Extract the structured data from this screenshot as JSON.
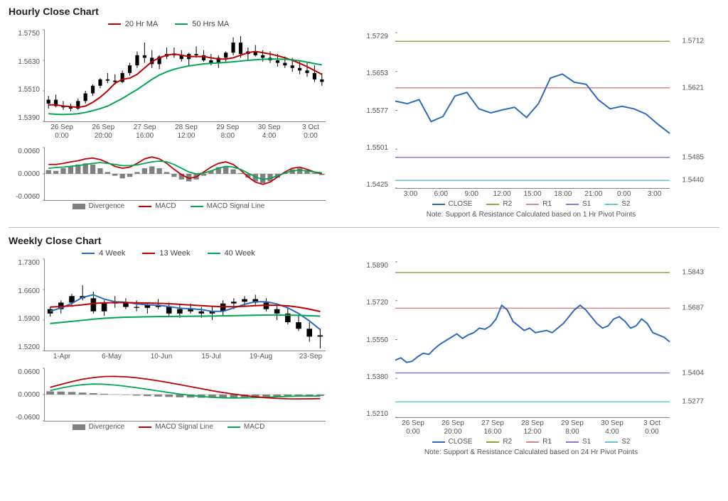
{
  "hourly": {
    "title": "Hourly Close Chart",
    "main": {
      "legend": [
        {
          "label": "20 Hr MA",
          "color": "#c00000"
        },
        {
          "label": "50 Hrs MA",
          "color": "#00a651"
        }
      ],
      "y_ticks": [
        "1.5750",
        "1.5630",
        "1.5510",
        "1.5390"
      ],
      "ylim": [
        1.539,
        1.575
      ],
      "x_labels": [
        "26 Sep\n0:00",
        "26 Sep\n20:00",
        "27 Sep\n16:00",
        "28 Sep\n12:00",
        "29 Sep\n8:00",
        "30 Sep\n4:00",
        "3 Oct\n0:00"
      ],
      "candle_color": "#000000",
      "ma20_color": "#c00000",
      "ma50_color": "#00a651",
      "candles": [
        [
          1.546,
          1.549,
          1.544,
          1.5475
        ],
        [
          1.5475,
          1.5495,
          1.5445,
          1.545
        ],
        [
          1.545,
          1.547,
          1.5435,
          1.5445
        ],
        [
          1.5445,
          1.546,
          1.543,
          1.544
        ],
        [
          1.544,
          1.548,
          1.5435,
          1.547
        ],
        [
          1.547,
          1.551,
          1.546,
          1.55
        ],
        [
          1.55,
          1.5535,
          1.549,
          1.553
        ],
        [
          1.553,
          1.556,
          1.552,
          1.5555
        ],
        [
          1.5555,
          1.558,
          1.554,
          1.555
        ],
        [
          1.555,
          1.5575,
          1.5535,
          1.5545
        ],
        [
          1.5545,
          1.559,
          1.554,
          1.558
        ],
        [
          1.558,
          1.562,
          1.557,
          1.561
        ],
        [
          1.561,
          1.5665,
          1.56,
          1.565
        ],
        [
          1.565,
          1.57,
          1.562,
          1.564
        ],
        [
          1.564,
          1.567,
          1.56,
          1.5615
        ],
        [
          1.5615,
          1.565,
          1.5595,
          1.5645
        ],
        [
          1.5645,
          1.568,
          1.5635,
          1.5655
        ],
        [
          1.5655,
          1.568,
          1.564,
          1.565
        ],
        [
          1.565,
          1.567,
          1.5625,
          1.5635
        ],
        [
          1.5635,
          1.566,
          1.561,
          1.5655
        ],
        [
          1.5655,
          1.5685,
          1.564,
          1.565
        ],
        [
          1.565,
          1.567,
          1.5625,
          1.563
        ],
        [
          1.563,
          1.5655,
          1.561,
          1.562
        ],
        [
          1.562,
          1.565,
          1.56,
          1.564
        ],
        [
          1.564,
          1.5665,
          1.5625,
          1.566
        ],
        [
          1.566,
          1.572,
          1.565,
          1.57
        ],
        [
          1.57,
          1.5725,
          1.564,
          1.5655
        ],
        [
          1.5655,
          1.568,
          1.563,
          1.5665
        ],
        [
          1.5665,
          1.569,
          1.5645,
          1.565
        ],
        [
          1.565,
          1.567,
          1.5625,
          1.564
        ],
        [
          1.564,
          1.5665,
          1.562,
          1.563
        ],
        [
          1.563,
          1.5655,
          1.5605,
          1.562
        ],
        [
          1.562,
          1.5645,
          1.56,
          1.561
        ],
        [
          1.561,
          1.564,
          1.5585,
          1.56
        ],
        [
          1.56,
          1.5625,
          1.5575,
          1.559
        ],
        [
          1.559,
          1.562,
          1.5565,
          1.558
        ],
        [
          1.558,
          1.561,
          1.5545,
          1.5555
        ],
        [
          1.5555,
          1.558,
          1.553,
          1.5545
        ]
      ],
      "ma20": [
        1.5455,
        1.5455,
        1.545,
        1.5448,
        1.5445,
        1.545,
        1.5465,
        1.5485,
        1.551,
        1.554,
        1.5555,
        1.556,
        1.5575,
        1.56,
        1.5625,
        1.564,
        1.565,
        1.5655,
        1.565,
        1.5645,
        1.5645,
        1.5645,
        1.564,
        1.5635,
        1.5635,
        1.564,
        1.565,
        1.566,
        1.5665,
        1.566,
        1.5655,
        1.5648,
        1.564,
        1.563,
        1.5618,
        1.5605,
        1.559,
        1.5575
      ],
      "ma50": [
        1.542,
        1.5418,
        1.5417,
        1.5418,
        1.542,
        1.5425,
        1.5432,
        1.544,
        1.545,
        1.5465,
        1.548,
        1.5498,
        1.5515,
        1.5535,
        1.5555,
        1.5572,
        1.5585,
        1.5595,
        1.5602,
        1.5608,
        1.5612,
        1.5616,
        1.5618,
        1.562,
        1.5622,
        1.5624,
        1.5627,
        1.563,
        1.5632,
        1.5634,
        1.5635,
        1.5635,
        1.5634,
        1.5632,
        1.5628,
        1.5623,
        1.5617,
        1.5612
      ]
    },
    "macd": {
      "y_ticks": [
        "0.0060",
        "0.0000",
        "-0.0060"
      ],
      "ylim": [
        -0.007,
        0.007
      ],
      "legend": [
        {
          "label": "Divergence",
          "color": "#808080",
          "type": "bar"
        },
        {
          "label": "MACD",
          "color": "#c00000",
          "type": "line"
        },
        {
          "label": "MACD Signal Line",
          "color": "#00a651",
          "type": "line"
        }
      ],
      "divergence": [
        0.001,
        0.0008,
        0.0015,
        0.002,
        0.0025,
        0.0028,
        0.0025,
        0.0015,
        0.0005,
        -0.0005,
        -0.0012,
        -0.0008,
        0.0005,
        0.0015,
        0.002,
        0.0015,
        0.0005,
        -0.0008,
        -0.0015,
        -0.002,
        -0.0015,
        -0.0005,
        0.0008,
        0.0018,
        0.002,
        0.0012,
        0.0002,
        -0.001,
        -0.002,
        -0.0025,
        -0.002,
        -0.001,
        0.0002,
        0.0012,
        0.0015,
        0.001,
        0.0003,
        -0.0003
      ],
      "macd": [
        0.0025,
        0.0025,
        0.0028,
        0.0032,
        0.0035,
        0.004,
        0.0042,
        0.0038,
        0.003,
        0.002,
        0.0015,
        0.0018,
        0.0028,
        0.004,
        0.0045,
        0.004,
        0.0028,
        0.0012,
        -0.0002,
        -0.0012,
        -0.0008,
        0.0005,
        0.0018,
        0.0028,
        0.0032,
        0.0025,
        0.001,
        -0.0008,
        -0.0022,
        -0.0028,
        -0.0022,
        -0.0008,
        0.0005,
        0.0015,
        0.0018,
        0.0012,
        0.0005,
        0.0
      ],
      "signal": [
        0.0015,
        0.0017,
        0.0018,
        0.002,
        0.0022,
        0.0025,
        0.0028,
        0.003,
        0.0028,
        0.0025,
        0.0022,
        0.0022,
        0.0024,
        0.0028,
        0.0032,
        0.0034,
        0.0032,
        0.0025,
        0.0015,
        0.0005,
        0.0,
        0.0002,
        0.0008,
        0.0015,
        0.002,
        0.0018,
        0.0012,
        0.0002,
        -0.0008,
        -0.0015,
        -0.0012,
        -0.0005,
        0.0002,
        0.0008,
        0.001,
        0.0008,
        0.0005,
        0.0003
      ]
    },
    "pivot": {
      "y_ticks": [
        "1.5729",
        "1.5653",
        "1.5577",
        "1.5501",
        "1.5425"
      ],
      "ylim": [
        1.5425,
        1.5729
      ],
      "x_labels": [
        "3:00",
        "6:00",
        "9:00",
        "12:00",
        "15:00",
        "18:00",
        "21:00",
        "0:00",
        "3:00"
      ],
      "levels": [
        {
          "name": "R2",
          "value": 1.5712,
          "color": "#8aa63a"
        },
        {
          "name": "R1",
          "value": 1.5621,
          "color": "#d98686"
        },
        {
          "name": "S1",
          "value": 1.5485,
          "color": "#9370db"
        },
        {
          "name": "S2",
          "value": 1.544,
          "color": "#66c2d6"
        }
      ],
      "close_color": "#2a6bbf",
      "close": [
        1.5595,
        1.559,
        1.5598,
        1.5555,
        1.5565,
        1.5605,
        1.5612,
        1.558,
        1.5572,
        1.5578,
        1.5583,
        1.5563,
        1.559,
        1.564,
        1.5648,
        1.5632,
        1.5628,
        1.5598,
        1.558,
        1.5585,
        1.558,
        1.557,
        1.555,
        1.5532
      ],
      "legend": [
        {
          "label": "CLOSE",
          "color": "#2a6bbf"
        },
        {
          "label": "R2",
          "color": "#8aa63a"
        },
        {
          "label": "R1",
          "color": "#d98686"
        },
        {
          "label": "S1",
          "color": "#9370db"
        },
        {
          "label": "S2",
          "color": "#66c2d6"
        }
      ],
      "note": "Note: Support & Resistance Calculated based on 1 Hr Pivot Points"
    }
  },
  "weekly": {
    "title": "Weekly Close Chart",
    "main": {
      "legend": [
        {
          "label": "4 Week",
          "color": "#2a6bbf"
        },
        {
          "label": "13 Week",
          "color": "#c00000"
        },
        {
          "label": "40 Week",
          "color": "#00a651"
        }
      ],
      "y_ticks": [
        "1.7300",
        "1.6600",
        "1.5900",
        "1.5200"
      ],
      "ylim": [
        1.52,
        1.73
      ],
      "x_labels": [
        "1-Apr",
        "6-May",
        "10-Jun",
        "15-Jul",
        "19-Aug",
        "23-Sep"
      ],
      "candle_color": "#000000",
      "candles": [
        [
          1.605,
          1.62,
          1.598,
          1.615
        ],
        [
          1.615,
          1.635,
          1.605,
          1.63
        ],
        [
          1.63,
          1.65,
          1.62,
          1.645
        ],
        [
          1.645,
          1.67,
          1.635,
          1.64
        ],
        [
          1.64,
          1.655,
          1.605,
          1.61
        ],
        [
          1.61,
          1.635,
          1.6,
          1.628
        ],
        [
          1.628,
          1.645,
          1.618,
          1.63
        ],
        [
          1.63,
          1.64,
          1.615,
          1.62
        ],
        [
          1.62,
          1.635,
          1.61,
          1.618
        ],
        [
          1.618,
          1.63,
          1.605,
          1.625
        ],
        [
          1.625,
          1.638,
          1.615,
          1.62
        ],
        [
          1.62,
          1.63,
          1.6,
          1.605
        ],
        [
          1.605,
          1.625,
          1.595,
          1.615
        ],
        [
          1.615,
          1.628,
          1.605,
          1.61
        ],
        [
          1.61,
          1.62,
          1.595,
          1.605
        ],
        [
          1.605,
          1.62,
          1.59,
          1.61
        ],
        [
          1.61,
          1.635,
          1.6,
          1.628
        ],
        [
          1.628,
          1.64,
          1.615,
          1.632
        ],
        [
          1.632,
          1.645,
          1.62,
          1.638
        ],
        [
          1.638,
          1.648,
          1.625,
          1.63
        ],
        [
          1.63,
          1.64,
          1.61,
          1.615
        ],
        [
          1.615,
          1.625,
          1.59,
          1.605
        ],
        [
          1.605,
          1.62,
          1.58,
          1.585
        ],
        [
          1.585,
          1.6,
          1.565,
          1.57
        ],
        [
          1.57,
          1.585,
          1.54,
          1.552
        ],
        [
          1.552,
          1.57,
          1.525,
          1.555
        ]
      ],
      "w4_color": "#2a6bbf",
      "w13_color": "#c00000",
      "w40_color": "#00a651",
      "w4": [
        1.61,
        1.618,
        1.628,
        1.642,
        1.648,
        1.638,
        1.632,
        1.631,
        1.627,
        1.625,
        1.624,
        1.621,
        1.617,
        1.616,
        1.614,
        1.61,
        1.61,
        1.618,
        1.626,
        1.632,
        1.632,
        1.627,
        1.618,
        1.605,
        1.588,
        1.568
      ],
      "w13": [
        1.62,
        1.621,
        1.6225,
        1.625,
        1.628,
        1.6295,
        1.63,
        1.63,
        1.6295,
        1.629,
        1.6285,
        1.6275,
        1.626,
        1.6245,
        1.623,
        1.6215,
        1.6205,
        1.6205,
        1.6215,
        1.623,
        1.624,
        1.624,
        1.6225,
        1.6195,
        1.615,
        1.6095
      ],
      "w40": [
        1.582,
        1.5845,
        1.587,
        1.5895,
        1.592,
        1.594,
        1.5955,
        1.5965,
        1.597,
        1.5975,
        1.598,
        1.5982,
        1.5985,
        1.5988,
        1.599,
        1.5992,
        1.5995,
        1.6,
        1.6005,
        1.601,
        1.6015,
        1.6015,
        1.6012,
        1.6008,
        1.6,
        1.599
      ]
    },
    "macd": {
      "y_ticks": [
        "0.0600",
        "0.0000",
        "-0.0600"
      ],
      "ylim": [
        -0.065,
        0.065
      ],
      "legend": [
        {
          "label": "Divergence",
          "color": "#808080",
          "type": "bar"
        },
        {
          "label": "MACD Signal Line",
          "color": "#c00000",
          "type": "line"
        },
        {
          "label": "MACD",
          "color": "#00a651",
          "type": "line"
        }
      ],
      "divergence": [
        0.008,
        0.0075,
        0.0065,
        0.005,
        0.0035,
        0.002,
        0.0005,
        -0.001,
        -0.0025,
        -0.0038,
        -0.005,
        -0.006,
        -0.0068,
        -0.0075,
        -0.008,
        -0.0082,
        -0.008,
        -0.0075,
        -0.0068,
        -0.006,
        -0.0052,
        -0.0045,
        -0.004,
        -0.0035,
        -0.0033,
        -0.0035
      ],
      "signal_line": [
        0.018,
        0.025,
        0.032,
        0.038,
        0.042,
        0.0445,
        0.045,
        0.044,
        0.0415,
        0.038,
        0.034,
        0.0295,
        0.0245,
        0.0195,
        0.0145,
        0.0095,
        0.005,
        0.001,
        -0.0025,
        -0.0055,
        -0.0078,
        -0.0095,
        -0.0105,
        -0.0108,
        -0.0105,
        -0.01
      ],
      "macd": [
        0.01,
        0.016,
        0.021,
        0.0245,
        0.026,
        0.0255,
        0.0235,
        0.0205,
        0.017,
        0.013,
        0.009,
        0.005,
        0.0012,
        -0.002,
        -0.0048,
        -0.0068,
        -0.008,
        -0.0085,
        -0.0082,
        -0.0075,
        -0.0065,
        -0.0055,
        -0.0045,
        -0.0038,
        -0.0035,
        -0.0038
      ]
    },
    "pivot": {
      "y_ticks": [
        "1.5890",
        "1.5720",
        "1.5550",
        "1.5380",
        "1.5210"
      ],
      "ylim": [
        1.521,
        1.589
      ],
      "x_labels": [
        "26 Sep\n0:00",
        "26 Sep\n20:00",
        "27 Sep\n16:00",
        "28 Sep\n12:00",
        "29 Sep\n8:00",
        "30 Sep\n4:00",
        "3 Oct\n0:00"
      ],
      "levels": [
        {
          "name": "R2",
          "value": 1.5843,
          "color": "#8aa63a"
        },
        {
          "name": "R1",
          "value": 1.5687,
          "color": "#d98686"
        },
        {
          "name": "S1",
          "value": 1.5404,
          "color": "#9370db"
        },
        {
          "name": "S2",
          "value": 1.5277,
          "color": "#66c2d6"
        }
      ],
      "close_color": "#2a6bbf",
      "close": [
        1.546,
        1.547,
        1.545,
        1.5455,
        1.5475,
        1.549,
        1.5485,
        1.551,
        1.553,
        1.5545,
        1.556,
        1.5575,
        1.5555,
        1.557,
        1.558,
        1.56,
        1.5595,
        1.561,
        1.564,
        1.57,
        1.568,
        1.563,
        1.561,
        1.559,
        1.56,
        1.558,
        1.5585,
        1.559,
        1.558,
        1.56,
        1.562,
        1.565,
        1.568,
        1.57,
        1.568,
        1.565,
        1.562,
        1.56,
        1.561,
        1.564,
        1.565,
        1.563,
        1.56,
        1.561,
        1.564,
        1.562,
        1.558,
        1.557,
        1.556,
        1.554
      ],
      "legend": [
        {
          "label": "CLOSE",
          "color": "#2a6bbf"
        },
        {
          "label": "R2",
          "color": "#8aa63a"
        },
        {
          "label": "R1",
          "color": "#d98686"
        },
        {
          "label": "S1",
          "color": "#9370db"
        },
        {
          "label": "S2",
          "color": "#66c2d6"
        }
      ],
      "note": "Note: Support & Resistance Calculated based on 24 Hr Pivot Points"
    }
  }
}
